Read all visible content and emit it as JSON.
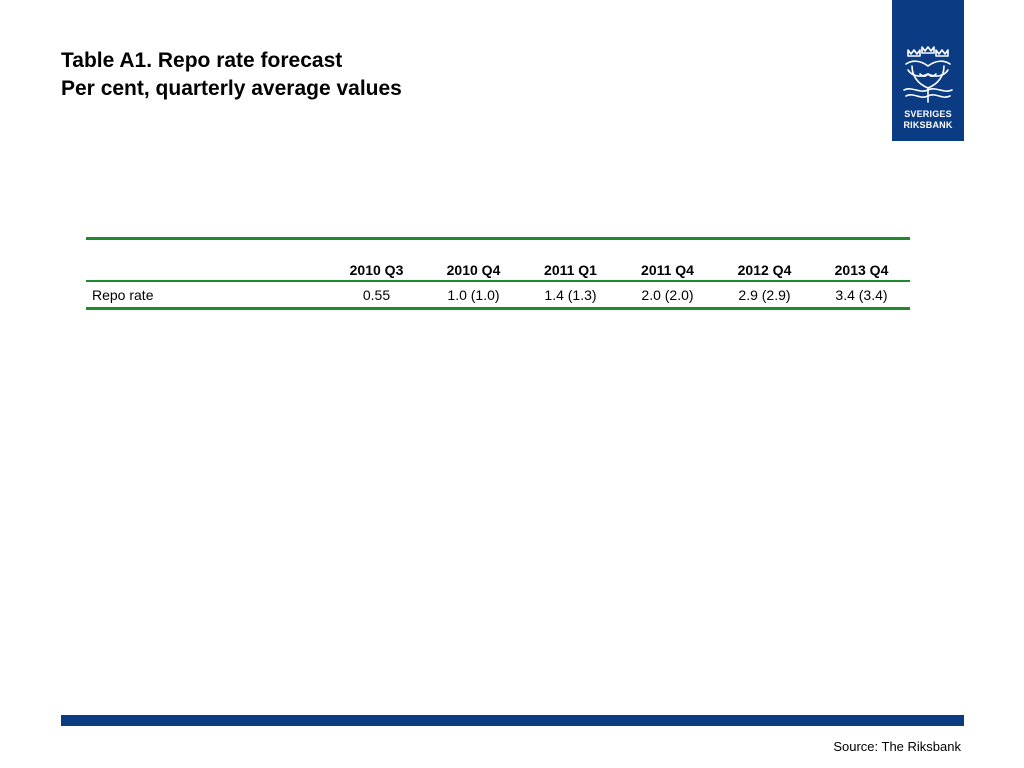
{
  "title": {
    "line1": "Table A1. Repo rate forecast",
    "line2": "Per cent, quarterly average values"
  },
  "logo": {
    "icon": "riksbank-crest",
    "line1": "SVERIGES",
    "line2": "RIKSBANK",
    "color": "#0b3b82"
  },
  "table": {
    "columns": [
      "",
      "2010 Q3",
      "2010 Q4",
      "2011 Q1",
      "2011 Q4",
      "2012 Q4",
      "2013 Q4"
    ],
    "rows": [
      {
        "label": "Repo rate",
        "values": [
          "0.55",
          "1.0 (1.0)",
          "1.4 (1.3)",
          "2.0 (2.0)",
          "2.9 (2.9)",
          "3.4 (3.4)"
        ]
      }
    ],
    "rule_color": "#1f8a2c"
  },
  "footer": {
    "source": "Source: The Riksbank",
    "bar_color": "#0b3b82"
  }
}
